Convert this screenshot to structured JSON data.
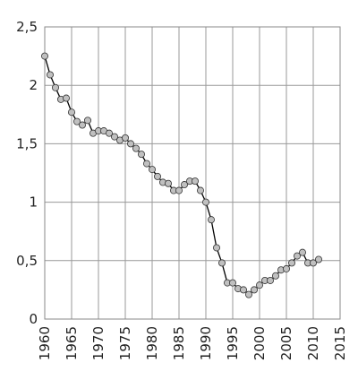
{
  "chart_data": {
    "type": "line",
    "x": [
      1960,
      1961,
      1962,
      1963,
      1964,
      1965,
      1966,
      1967,
      1968,
      1969,
      1970,
      1971,
      1972,
      1973,
      1974,
      1975,
      1976,
      1977,
      1978,
      1979,
      1980,
      1981,
      1982,
      1983,
      1984,
      1985,
      1986,
      1987,
      1988,
      1989,
      1990,
      1991,
      1992,
      1993,
      1994,
      1995,
      1996,
      1997,
      1998,
      1999,
      2000,
      2001,
      2002,
      2003,
      2004,
      2005,
      2006,
      2007,
      2008,
      2009,
      2010,
      2011
    ],
    "series": [
      {
        "color": "#c0c0c0",
        "values": [
          2.25,
          2.09,
          1.98,
          1.88,
          1.89,
          1.77,
          1.69,
          1.66,
          1.7,
          1.59,
          1.61,
          1.61,
          1.59,
          1.56,
          1.53,
          1.55,
          1.5,
          1.46,
          1.41,
          1.33,
          1.28,
          1.22,
          1.17,
          1.16,
          1.1,
          1.1,
          1.15,
          1.18,
          1.18,
          1.1,
          1.0,
          0.85,
          0.61,
          0.48,
          0.31,
          0.31,
          0.26,
          0.25,
          0.21,
          0.25,
          0.29,
          0.33,
          0.33,
          0.37,
          0.42,
          0.43,
          0.48,
          0.54,
          0.57,
          0.48,
          0.48,
          0.51
        ]
      }
    ],
    "xlim": [
      1960,
      2015
    ],
    "xticks": [
      1960,
      1965,
      1970,
      1975,
      1980,
      1985,
      1990,
      1995,
      2000,
      2005,
      2010,
      2015
    ],
    "ylim": [
      0,
      2.5
    ],
    "yticks": [
      0,
      {
        "value": 0.5,
        "label": "0,5"
      },
      1,
      {
        "value": 1.5,
        "label": "1,5"
      },
      2,
      {
        "value": 2.5,
        "label": "2,5"
      }
    ],
    "grid": true
  }
}
